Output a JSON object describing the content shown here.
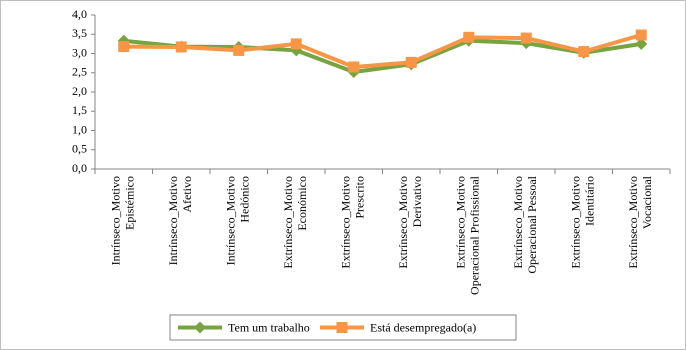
{
  "chart_data": {
    "type": "line",
    "categories": [
      [
        "Intrínseco_Motivo",
        "Epistémico"
      ],
      [
        "Intrínseco_Motivo",
        "Afetivo"
      ],
      [
        "Intrínseco_Motivo",
        "Hedónico"
      ],
      [
        "Extrínseco_Motivo",
        "Económico"
      ],
      [
        "Extrínseco_Motivo",
        "Prescrito"
      ],
      [
        "Extrínseco_Motivo",
        "Derivativo"
      ],
      [
        "Extrínseco_Motivo",
        "Operacional Profissional"
      ],
      [
        "Extrínseco_Motivo",
        "Operacional Pessoal"
      ],
      [
        "Extrínseco_Motivo",
        "Identitário"
      ],
      [
        "Extrínseco_Motivo",
        "Vocacional"
      ]
    ],
    "series": [
      {
        "name": "Tem um trabalho",
        "color": "#77a340",
        "marker": "diamond",
        "values": [
          3.33,
          3.18,
          3.17,
          3.08,
          2.52,
          2.72,
          3.33,
          3.27,
          3.02,
          3.25
        ]
      },
      {
        "name": "Está desempregado(a)",
        "color": "#f79646",
        "marker": "square",
        "values": [
          3.18,
          3.17,
          3.08,
          3.25,
          2.65,
          2.77,
          3.42,
          3.4,
          3.05,
          3.48
        ]
      }
    ],
    "ylim": [
      0,
      4
    ],
    "yticks": [
      {
        "value": 0,
        "label": "0,0"
      },
      {
        "value": 0.5,
        "label": "0,5"
      },
      {
        "value": 1,
        "label": "1,0"
      },
      {
        "value": 1.5,
        "label": "1,5"
      },
      {
        "value": 2,
        "label": "2,0"
      },
      {
        "value": 2.5,
        "label": "2,5"
      },
      {
        "value": 3,
        "label": "3,0"
      },
      {
        "value": 3.5,
        "label": "3,5"
      },
      {
        "value": 4,
        "label": "4,0"
      }
    ],
    "legend": "bottom"
  }
}
